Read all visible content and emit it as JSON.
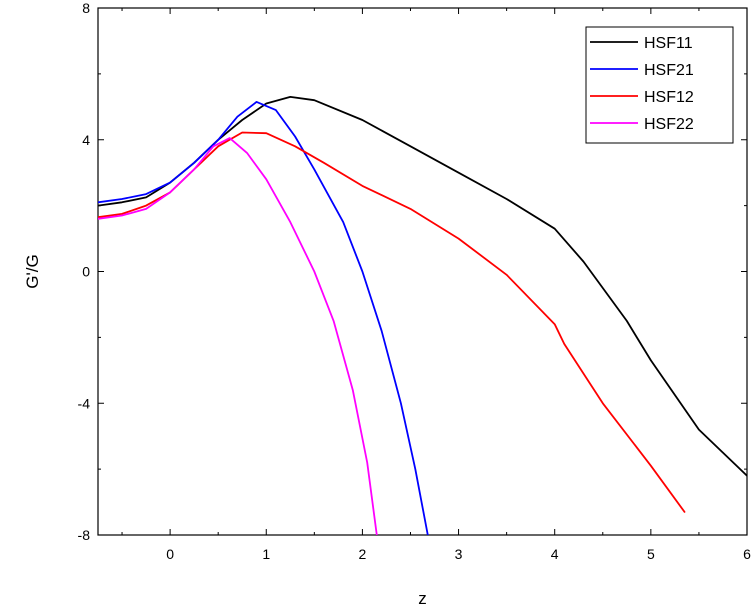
{
  "chart_data": {
    "type": "line",
    "xlabel": "z",
    "ylabel": "G'/G",
    "xlim": [
      -0.75,
      6
    ],
    "ylim": [
      -8,
      8
    ],
    "x_ticks": [
      0,
      1,
      2,
      3,
      4,
      5,
      6
    ],
    "y_ticks": [
      -8,
      -4,
      0,
      4,
      8
    ],
    "grid": false,
    "legend_position": "top-right",
    "series": [
      {
        "name": "HSF11",
        "color": "#000000",
        "points": [
          [
            -0.75,
            2.0
          ],
          [
            -0.5,
            2.1
          ],
          [
            -0.25,
            2.25
          ],
          [
            0,
            2.7
          ],
          [
            0.25,
            3.3
          ],
          [
            0.5,
            4.0
          ],
          [
            0.75,
            4.6
          ],
          [
            1.0,
            5.1
          ],
          [
            1.25,
            5.3
          ],
          [
            1.5,
            5.2
          ],
          [
            2.0,
            4.6
          ],
          [
            2.5,
            3.8
          ],
          [
            3.0,
            3.0
          ],
          [
            3.5,
            2.2
          ],
          [
            4.0,
            1.3
          ],
          [
            4.3,
            0.3
          ],
          [
            4.75,
            -1.5
          ],
          [
            5.0,
            -2.7
          ],
          [
            5.5,
            -4.8
          ],
          [
            6.0,
            -6.2
          ]
        ]
      },
      {
        "name": "HSF21",
        "color": "#0000ff",
        "points": [
          [
            -0.75,
            2.1
          ],
          [
            -0.5,
            2.2
          ],
          [
            -0.25,
            2.35
          ],
          [
            0,
            2.7
          ],
          [
            0.25,
            3.3
          ],
          [
            0.5,
            4.0
          ],
          [
            0.7,
            4.7
          ],
          [
            0.9,
            5.15
          ],
          [
            1.1,
            4.9
          ],
          [
            1.3,
            4.1
          ],
          [
            1.5,
            3.1
          ],
          [
            1.8,
            1.5
          ],
          [
            2.0,
            0.0
          ],
          [
            2.2,
            -1.8
          ],
          [
            2.4,
            -4.0
          ],
          [
            2.55,
            -6.0
          ],
          [
            2.68,
            -8.0
          ]
        ]
      },
      {
        "name": "HSF12",
        "color": "#ff0000",
        "points": [
          [
            -0.75,
            1.65
          ],
          [
            -0.5,
            1.75
          ],
          [
            -0.25,
            2.0
          ],
          [
            0,
            2.4
          ],
          [
            0.25,
            3.1
          ],
          [
            0.5,
            3.8
          ],
          [
            0.75,
            4.22
          ],
          [
            1.0,
            4.2
          ],
          [
            1.3,
            3.8
          ],
          [
            1.6,
            3.3
          ],
          [
            2.0,
            2.6
          ],
          [
            2.5,
            1.9
          ],
          [
            3.0,
            1.0
          ],
          [
            3.5,
            -0.1
          ],
          [
            4.0,
            -1.6
          ],
          [
            4.1,
            -2.2
          ],
          [
            4.5,
            -4.0
          ],
          [
            5.0,
            -5.9
          ],
          [
            5.35,
            -7.3
          ]
        ]
      },
      {
        "name": "HSF22",
        "color": "#ff00ff",
        "points": [
          [
            -0.75,
            1.6
          ],
          [
            -0.5,
            1.7
          ],
          [
            -0.25,
            1.9
          ],
          [
            0,
            2.4
          ],
          [
            0.25,
            3.1
          ],
          [
            0.45,
            3.8
          ],
          [
            0.62,
            4.05
          ],
          [
            0.8,
            3.6
          ],
          [
            1.0,
            2.8
          ],
          [
            1.25,
            1.5
          ],
          [
            1.5,
            0.0
          ],
          [
            1.7,
            -1.5
          ],
          [
            1.9,
            -3.6
          ],
          [
            2.05,
            -5.8
          ],
          [
            2.15,
            -8.0
          ]
        ]
      }
    ]
  }
}
